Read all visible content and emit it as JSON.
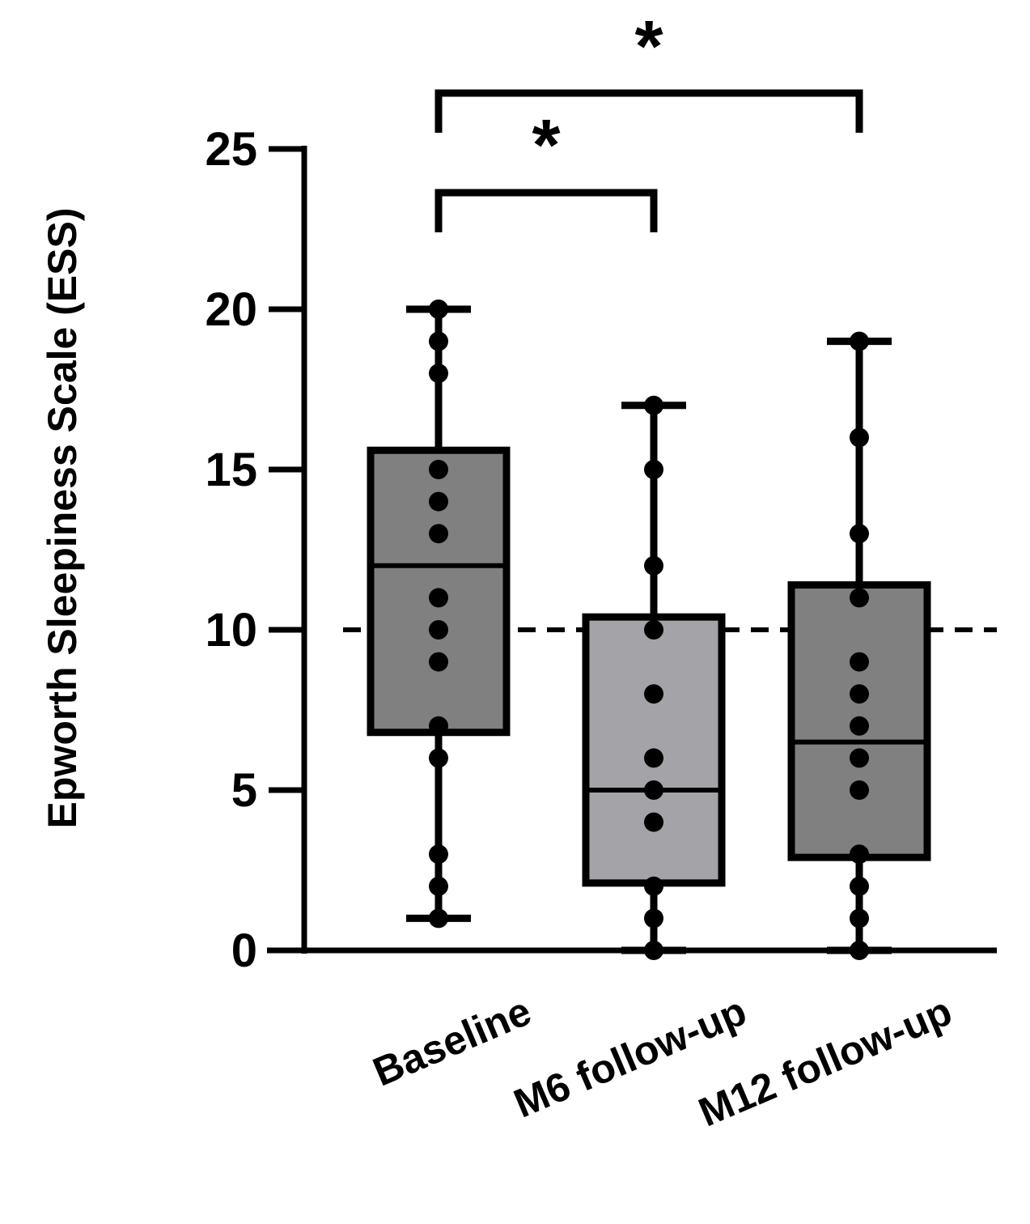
{
  "chart_data": {
    "type": "box",
    "ylabel": "Epworth Sleepiness Scale (ESS)",
    "xlabel": "",
    "ylim": [
      0,
      25
    ],
    "yticks": [
      0,
      5,
      10,
      15,
      20,
      25
    ],
    "reference_line": {
      "y": 10,
      "style": "dashed"
    },
    "categories": [
      "Baseline",
      "M6 follow-up",
      "M12 follow-up"
    ],
    "boxes": [
      {
        "name": "Baseline",
        "min": 1,
        "q1": 6.8,
        "median": 12,
        "q3": 15.6,
        "max": 20,
        "fill": "#808080",
        "points": [
          20,
          19,
          18,
          15,
          14,
          13,
          11,
          10,
          9,
          7,
          6,
          3,
          2,
          1
        ]
      },
      {
        "name": "M6 follow-up",
        "min": 0,
        "q1": 2.1,
        "median": 5,
        "q3": 10.4,
        "max": 17,
        "fill": "#a4a4a8",
        "points": [
          17,
          15,
          12,
          10,
          8,
          6,
          5,
          4,
          2,
          1,
          0
        ]
      },
      {
        "name": "M12 follow-up",
        "min": 0,
        "q1": 2.9,
        "median": 6.5,
        "q3": 11.4,
        "max": 19,
        "fill": "#808080",
        "points": [
          19,
          16,
          13,
          11,
          9,
          8,
          7,
          6,
          5,
          3,
          2,
          1,
          0
        ]
      }
    ],
    "significance": [
      {
        "from": "Baseline",
        "to": "M6 follow-up",
        "label": "*"
      },
      {
        "from": "Baseline",
        "to": "M12 follow-up",
        "label": "*"
      }
    ],
    "grid": false,
    "legend": "none"
  }
}
